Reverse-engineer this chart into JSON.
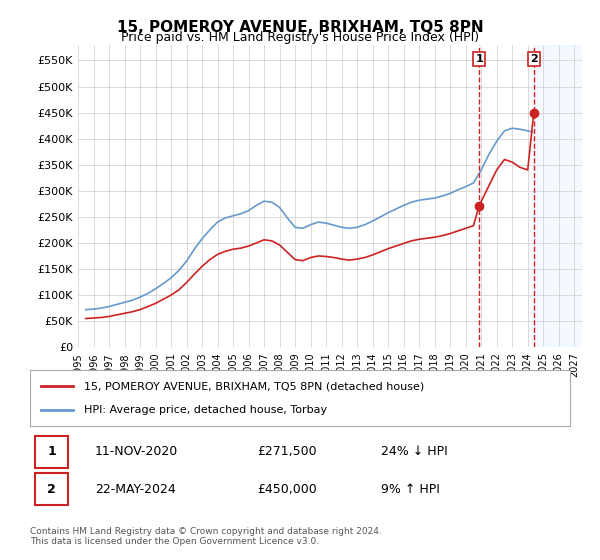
{
  "title": "15, POMEROY AVENUE, BRIXHAM, TQ5 8PN",
  "subtitle": "Price paid vs. HM Land Registry's House Price Index (HPI)",
  "ylabel": "",
  "xlabel": "",
  "ylim": [
    0,
    580000
  ],
  "yticks": [
    0,
    50000,
    100000,
    150000,
    200000,
    250000,
    300000,
    350000,
    400000,
    450000,
    500000,
    550000
  ],
  "ytick_labels": [
    "£0",
    "£50K",
    "£100K",
    "£150K",
    "£200K",
    "£250K",
    "£300K",
    "£350K",
    "£400K",
    "£450K",
    "£500K",
    "£550K"
  ],
  "xlim_start": 1995.0,
  "xlim_end": 2027.5,
  "xtick_years": [
    1995,
    1996,
    1997,
    1998,
    1999,
    2000,
    2001,
    2002,
    2003,
    2004,
    2005,
    2006,
    2007,
    2008,
    2009,
    2010,
    2011,
    2012,
    2013,
    2014,
    2015,
    2016,
    2017,
    2018,
    2019,
    2020,
    2021,
    2022,
    2023,
    2024,
    2025,
    2026,
    2027
  ],
  "hpi_color": "#6699cc",
  "price_color": "#cc2222",
  "dashed_color": "#cc2222",
  "shade_color": "#ddeeff",
  "grid_color": "#cccccc",
  "bg_color": "#ffffff",
  "point1_x": 2020.87,
  "point1_y": 271500,
  "point2_x": 2024.39,
  "point2_y": 450000,
  "footnote": "Contains HM Land Registry data © Crown copyright and database right 2024.\nThis data is licensed under the Open Government Licence v3.0.",
  "legend_label_red": "15, POMEROY AVENUE, BRIXHAM, TQ5 8PN (detached house)",
  "legend_label_blue": "HPI: Average price, detached house, Torbay",
  "table_row1_num": "1",
  "table_row1_date": "11-NOV-2020",
  "table_row1_price": "£271,500",
  "table_row1_hpi": "24% ↓ HPI",
  "table_row2_num": "2",
  "table_row2_date": "22-MAY-2024",
  "table_row2_price": "£450,000",
  "table_row2_hpi": "9% ↑ HPI"
}
